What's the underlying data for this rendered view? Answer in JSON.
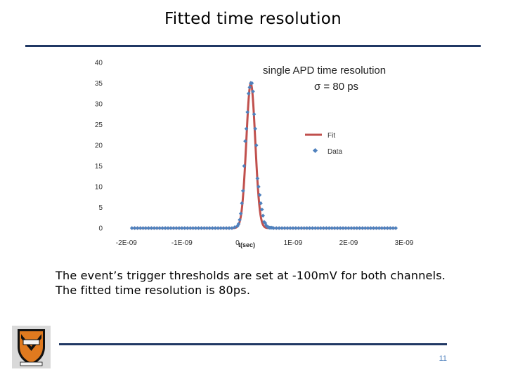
{
  "slide": {
    "title": "Fitted time resolution",
    "caption": "The event’s trigger thresholds are set at -100mV for both channels. The fitted time resolution is 80ps.",
    "page_number": "11"
  },
  "crest": {
    "icon": "princeton-shield-icon"
  },
  "colors": {
    "rule": "#203864",
    "fit": "#c0504d",
    "data": "#4f81bd"
  },
  "chart_data": {
    "type": "scatter",
    "title": "single APD time resolution",
    "annotation": "σ = 80 ps",
    "xlabel": "t(sec)",
    "ylabel": "",
    "xlim": [
      -2.2e-09,
      3e-09
    ],
    "ylim": [
      0,
      40
    ],
    "x_ticks": [
      -2e-09,
      -1e-09,
      0,
      1e-09,
      2e-09,
      3e-09
    ],
    "x_tick_labels": [
      "-2E-09",
      "-1E-09",
      "0",
      "1E-09",
      "2E-09",
      "3E-09"
    ],
    "y_ticks": [
      0,
      5,
      10,
      15,
      20,
      25,
      30,
      35,
      40
    ],
    "y_tick_labels": [
      "0",
      "5",
      "10",
      "15",
      "20",
      "25",
      "30",
      "35",
      "40"
    ],
    "grid": false,
    "legend": {
      "position": "right",
      "entries": [
        "Fit",
        "Data"
      ]
    },
    "series": [
      {
        "name": "Fit",
        "type": "line",
        "color": "#c0504d",
        "amplitude": 35,
        "mean": 2.4e-10,
        "sigma": 8e-11
      },
      {
        "name": "Data",
        "type": "scatter",
        "color": "#4f81bd",
        "x": [
          -1.9e-09,
          -1.85e-09,
          -1.8e-09,
          -1.75e-09,
          -1.7e-09,
          -1.65e-09,
          -1.6e-09,
          -1.55e-09,
          -1.5e-09,
          -1.45e-09,
          -1.4e-09,
          -1.35e-09,
          -1.3e-09,
          -1.25e-09,
          -1.2e-09,
          -1.15e-09,
          -1.1e-09,
          -1.05e-09,
          -1e-09,
          -9.5e-10,
          -9e-10,
          -8.5e-10,
          -8e-10,
          -7.5e-10,
          -7e-10,
          -6.5e-10,
          -6e-10,
          -5.5e-10,
          -5e-10,
          -4.5e-10,
          -4e-10,
          -3.5e-10,
          -3e-10,
          -2.5e-10,
          -2e-10,
          -1.5e-10,
          -1e-10,
          -5e-11,
          0,
          2e-11,
          4e-11,
          6e-11,
          8e-11,
          1e-10,
          1.2e-10,
          1.4e-10,
          1.6e-10,
          1.8e-10,
          2e-10,
          2.2e-10,
          2.4e-10,
          2.6e-10,
          2.8e-10,
          3e-10,
          3.2e-10,
          3.4e-10,
          3.6e-10,
          3.8e-10,
          4e-10,
          4.2e-10,
          4.4e-10,
          4.6e-10,
          4.8e-10,
          5e-10,
          5.2e-10,
          5.4e-10,
          5.6e-10,
          5.8e-10,
          6e-10,
          6.2e-10,
          6.5e-10,
          7e-10,
          7.5e-10,
          8e-10,
          8.5e-10,
          9e-10,
          9.5e-10,
          1e-09,
          1.05e-09,
          1.1e-09,
          1.15e-09,
          1.2e-09,
          1.25e-09,
          1.3e-09,
          1.35e-09,
          1.4e-09,
          1.45e-09,
          1.5e-09,
          1.55e-09,
          1.6e-09,
          1.65e-09,
          1.7e-09,
          1.75e-09,
          1.8e-09,
          1.85e-09,
          1.9e-09,
          1.95e-09,
          2e-09,
          2.05e-09,
          2.1e-09,
          2.15e-09,
          2.2e-09,
          2.25e-09,
          2.3e-09,
          2.35e-09,
          2.4e-09,
          2.45e-09,
          2.5e-09,
          2.55e-09,
          2.6e-09,
          2.65e-09,
          2.7e-09,
          2.75e-09,
          2.8e-09,
          2.85e-09
        ],
        "y": [
          0,
          0,
          0,
          0,
          0,
          0,
          0,
          0,
          0,
          0,
          0,
          0,
          0,
          0,
          0,
          0,
          0,
          0,
          0,
          0,
          0,
          0,
          0,
          0,
          0,
          0,
          0,
          0,
          0,
          0,
          0,
          0,
          0,
          0,
          0,
          0,
          0,
          0.2,
          0.5,
          1.0,
          2.0,
          3.5,
          6.0,
          9.0,
          15.0,
          21.0,
          24.0,
          28.0,
          32.5,
          34.0,
          35.0,
          35.0,
          33.0,
          27.5,
          24.0,
          20.0,
          12.0,
          10.0,
          8.0,
          6.0,
          4.5,
          3.0,
          1.5,
          1.2,
          0.6,
          0.3,
          0.2,
          0.1,
          0.1,
          0.1,
          0,
          0,
          0,
          0,
          0,
          0,
          0,
          0,
          0,
          0,
          0,
          0,
          0,
          0,
          0,
          0,
          0,
          0,
          0,
          0,
          0,
          0,
          0,
          0,
          0,
          0,
          0,
          0,
          0,
          0,
          0,
          0,
          0,
          0,
          0,
          0,
          0,
          0,
          0,
          0,
          0,
          0,
          0,
          0,
          0
        ]
      }
    ]
  }
}
